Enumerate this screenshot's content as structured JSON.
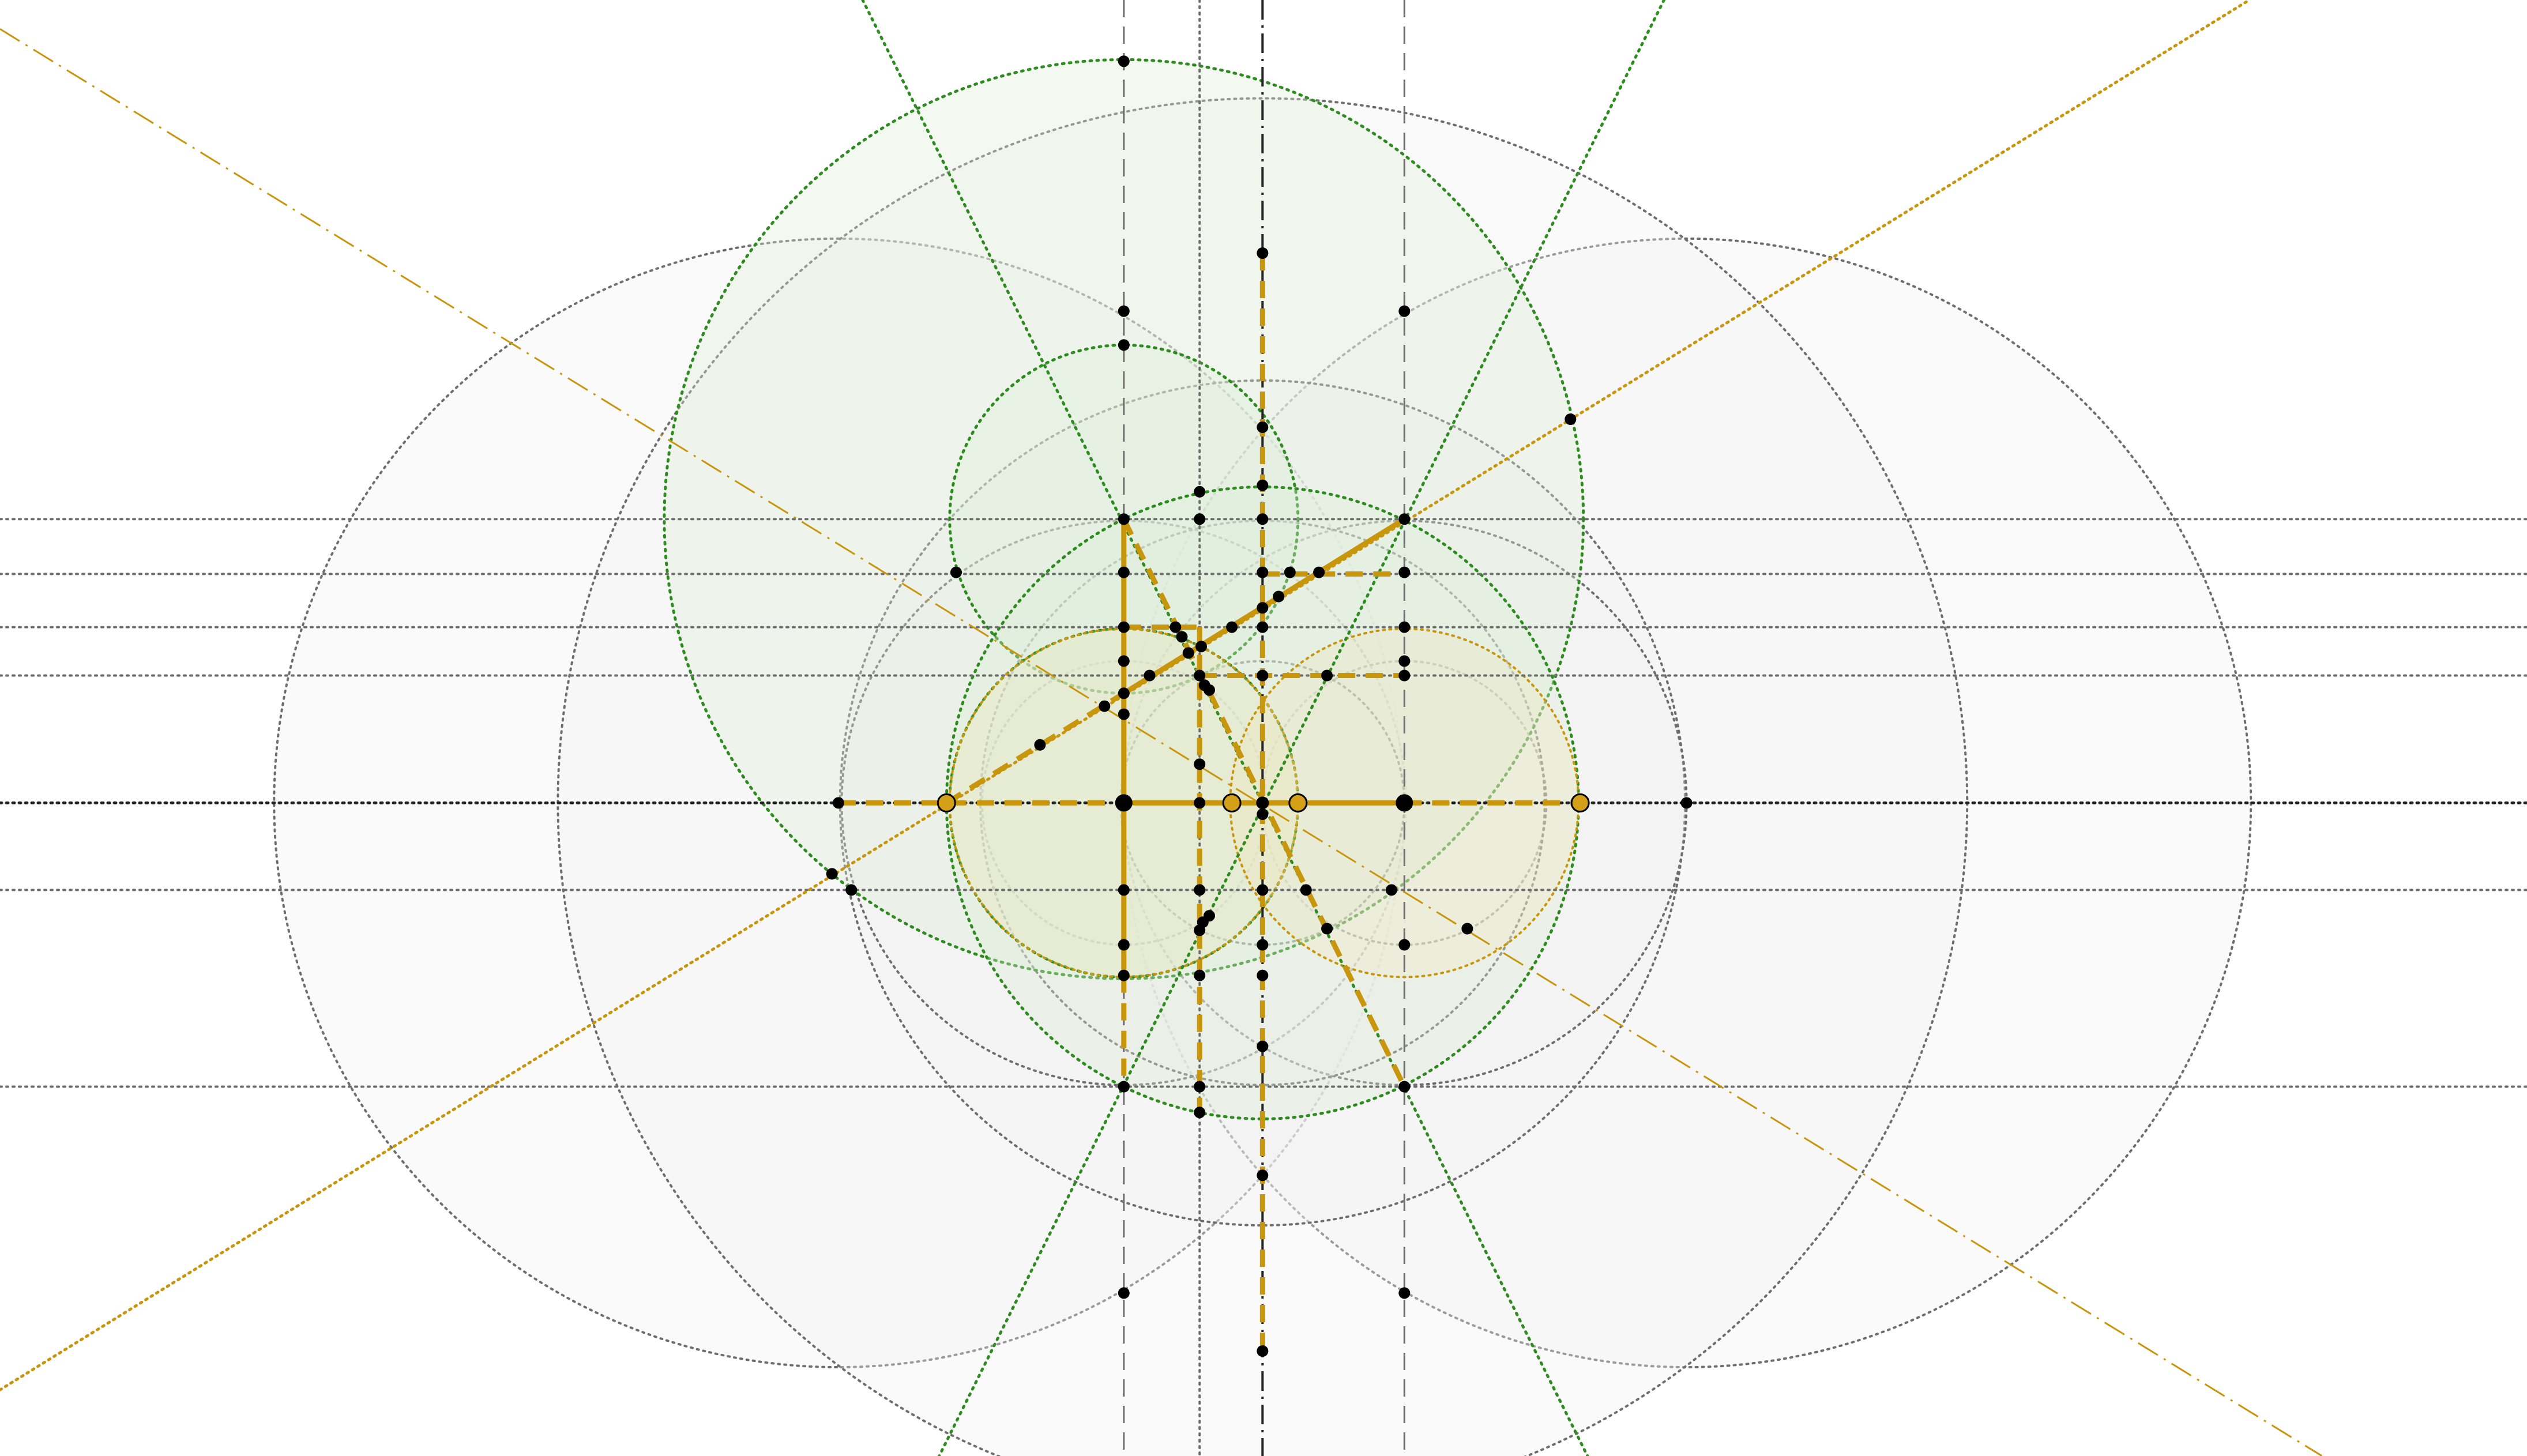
{
  "canvas": {
    "background": "#ffffff"
  },
  "colors": {
    "gray_guide": "#6e6e6e",
    "dark_guide": "#222222",
    "green_guide": "#2e8b1f",
    "gold": "#c8960c",
    "gold_fill": "#d4a017",
    "point": "#000000",
    "gray_circle_fill": "#f0f0f0",
    "green_circle_fill": "#dcefd6",
    "gold_circle_fill": "#f2e3b3"
  },
  "figure": {
    "kind": "geometric construction",
    "labels": []
  }
}
